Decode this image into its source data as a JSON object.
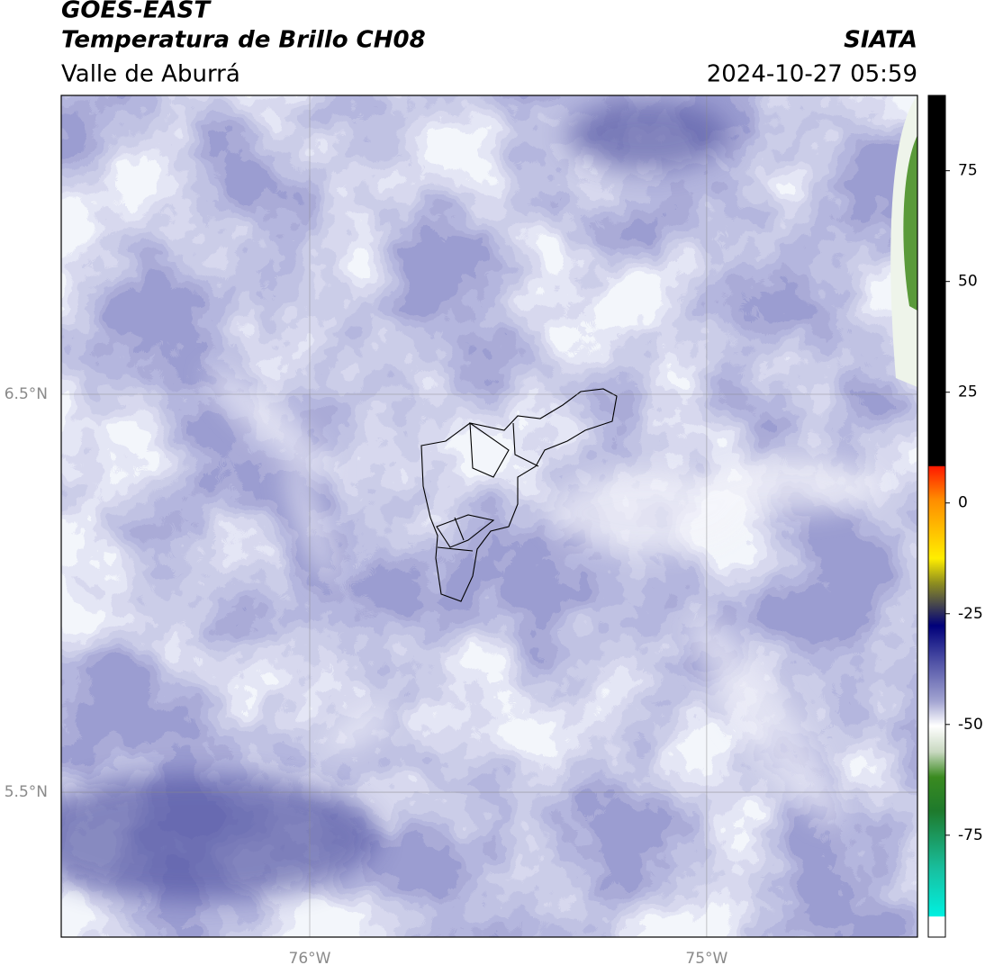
{
  "header": {
    "title": "GOES-EAST",
    "subtitle": "Temperatura de Brillo CH08",
    "source": "SIATA",
    "region": "Valle de Aburrá",
    "timestamp": "2024-10-27 05:59"
  },
  "map": {
    "xlim": [
      -76.626,
      -74.469
    ],
    "ylim": [
      5.136,
      7.251
    ],
    "xticks": [
      {
        "value": -76,
        "label": "76°W"
      },
      {
        "value": -75,
        "label": "75°W"
      }
    ],
    "yticks": [
      {
        "value": 6.5,
        "label": "6.5°N"
      },
      {
        "value": 5.5,
        "label": "5.5°N"
      }
    ],
    "grid": true
  },
  "colorbar": {
    "lim": [
      -98,
      92
    ],
    "ticks": [
      75,
      50,
      25,
      0,
      -25,
      -50,
      -75
    ]
  }
}
